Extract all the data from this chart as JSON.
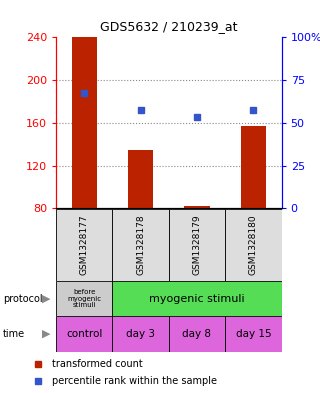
{
  "title": "GDS5632 / 210239_at",
  "samples": [
    "GSM1328177",
    "GSM1328178",
    "GSM1328179",
    "GSM1328180"
  ],
  "bar_values": [
    240,
    135,
    82,
    157
  ],
  "bar_base": 80,
  "blue_values": [
    188,
    172,
    165,
    172
  ],
  "ylim": [
    80,
    240
  ],
  "yticks_left": [
    80,
    120,
    160,
    200,
    240
  ],
  "yticks_right": [
    0,
    25,
    50,
    75,
    100
  ],
  "bar_color": "#bb2200",
  "blue_color": "#3355cc",
  "grid_color": "#888888",
  "protocol_bg_first": "#cccccc",
  "protocol_bg_rest": "#55dd55",
  "time_bg": "#dd66dd",
  "sample_bg": "#dddddd",
  "fig_width": 3.2,
  "fig_height": 3.93,
  "dpi": 100
}
